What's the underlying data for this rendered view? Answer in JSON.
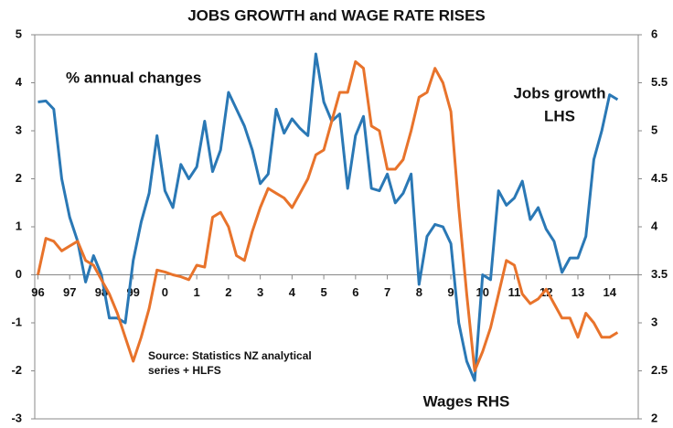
{
  "chart_data": {
    "type": "line",
    "title": "JOBS GROWTH and WAGE RATE RISES",
    "annotations": [
      "% annual changes",
      "Jobs growth",
      "LHS",
      "Source: Statistics NZ analytical",
      "series + HLFS",
      "Wages RHS"
    ],
    "x": [
      1996,
      1996.25,
      1996.5,
      1996.75,
      1997,
      1997.25,
      1997.5,
      1997.75,
      1998,
      1998.25,
      1998.5,
      1998.75,
      1999,
      1999.25,
      1999.5,
      1999.75,
      2000,
      2000.25,
      2000.5,
      2000.75,
      2001,
      2001.25,
      2001.5,
      2001.75,
      2002,
      2002.25,
      2002.5,
      2002.75,
      2003,
      2003.25,
      2003.5,
      2003.75,
      2004,
      2004.25,
      2004.5,
      2004.75,
      2005,
      2005.25,
      2005.5,
      2005.75,
      2006,
      2006.25,
      2006.5,
      2006.75,
      2007,
      2007.25,
      2007.5,
      2007.75,
      2008,
      2008.25,
      2008.5,
      2008.75,
      2009,
      2009.25,
      2009.5,
      2009.75,
      2010,
      2010.25,
      2010.5,
      2010.75,
      2011,
      2011.25,
      2011.5,
      2011.75,
      2012,
      2012.25,
      2012.5,
      2012.75,
      2013,
      2013.25,
      2013.5,
      2013.75,
      2014,
      2014.25
    ],
    "series": [
      {
        "name": "Jobs growth",
        "color": "#2a78b5",
        "axis": "y",
        "values": [
          3.6,
          3.62,
          3.45,
          2.0,
          1.2,
          0.7,
          -0.15,
          0.4,
          0.0,
          -0.9,
          -0.9,
          -1.0,
          0.3,
          1.1,
          1.7,
          2.9,
          1.75,
          1.4,
          2.3,
          2.0,
          2.25,
          3.2,
          2.15,
          2.6,
          3.8,
          3.45,
          3.1,
          2.6,
          1.9,
          2.1,
          3.45,
          2.95,
          3.25,
          3.05,
          2.9,
          4.6,
          3.6,
          3.2,
          3.35,
          1.8,
          2.9,
          3.3,
          1.8,
          1.75,
          2.1,
          1.5,
          1.7,
          2.1,
          -0.2,
          0.8,
          1.05,
          1.0,
          0.65,
          -1.0,
          -1.8,
          -2.2,
          0.0,
          -0.1,
          1.75,
          1.45,
          1.6,
          1.95,
          1.15,
          1.4,
          0.95,
          0.7,
          0.05,
          0.35,
          0.35,
          0.8,
          2.4,
          3.0,
          3.75,
          3.65
        ]
      },
      {
        "name": "Wages",
        "color": "#e8732b",
        "axis": "y2",
        "values": [
          3.5,
          3.88,
          3.85,
          3.75,
          3.8,
          3.85,
          3.65,
          3.6,
          3.45,
          3.3,
          3.1,
          2.85,
          2.6,
          2.85,
          3.15,
          3.55,
          3.53,
          3.5,
          3.48,
          3.45,
          3.6,
          3.58,
          4.1,
          4.15,
          4.0,
          3.7,
          3.65,
          3.95,
          4.2,
          4.4,
          4.35,
          4.3,
          4.2,
          4.35,
          4.5,
          4.75,
          4.8,
          5.1,
          5.4,
          5.4,
          5.72,
          5.65,
          5.05,
          5.0,
          4.6,
          4.6,
          4.7,
          5.0,
          5.35,
          5.4,
          5.65,
          5.5,
          5.2,
          4.2,
          3.3,
          2.5,
          2.7,
          2.95,
          3.3,
          3.65,
          3.6,
          3.3,
          3.2,
          3.25,
          3.35,
          3.2,
          3.05,
          3.05,
          2.85,
          3.1,
          3.0,
          2.85,
          2.85,
          2.9
        ]
      }
    ],
    "xlim": [
      1995.9,
      2014.9
    ],
    "xticks": [
      {
        "value": 1996,
        "label": "96"
      },
      {
        "value": 1997,
        "label": "97"
      },
      {
        "value": 1998,
        "label": "98"
      },
      {
        "value": 1999,
        "label": "99"
      },
      {
        "value": 2000,
        "label": "0"
      },
      {
        "value": 2001,
        "label": "1"
      },
      {
        "value": 2002,
        "label": "2"
      },
      {
        "value": 2003,
        "label": "3"
      },
      {
        "value": 2004,
        "label": "4"
      },
      {
        "value": 2005,
        "label": "5"
      },
      {
        "value": 2006,
        "label": "6"
      },
      {
        "value": 2007,
        "label": "7"
      },
      {
        "value": 2008,
        "label": "8"
      },
      {
        "value": 2009,
        "label": "9"
      },
      {
        "value": 2010,
        "label": "10"
      },
      {
        "value": 2011,
        "label": "11"
      },
      {
        "value": 2012,
        "label": "12"
      },
      {
        "value": 2013,
        "label": "13"
      },
      {
        "value": 2014,
        "label": "14"
      }
    ],
    "ylim": [
      -3,
      5
    ],
    "yticks": [
      -3,
      -2,
      -1,
      0,
      1,
      2,
      3,
      4,
      5
    ],
    "y2lim": [
      2,
      6
    ],
    "y2ticks": [
      2,
      2.5,
      3,
      3.5,
      4,
      4.5,
      5,
      5.5,
      6
    ],
    "grid": false
  }
}
